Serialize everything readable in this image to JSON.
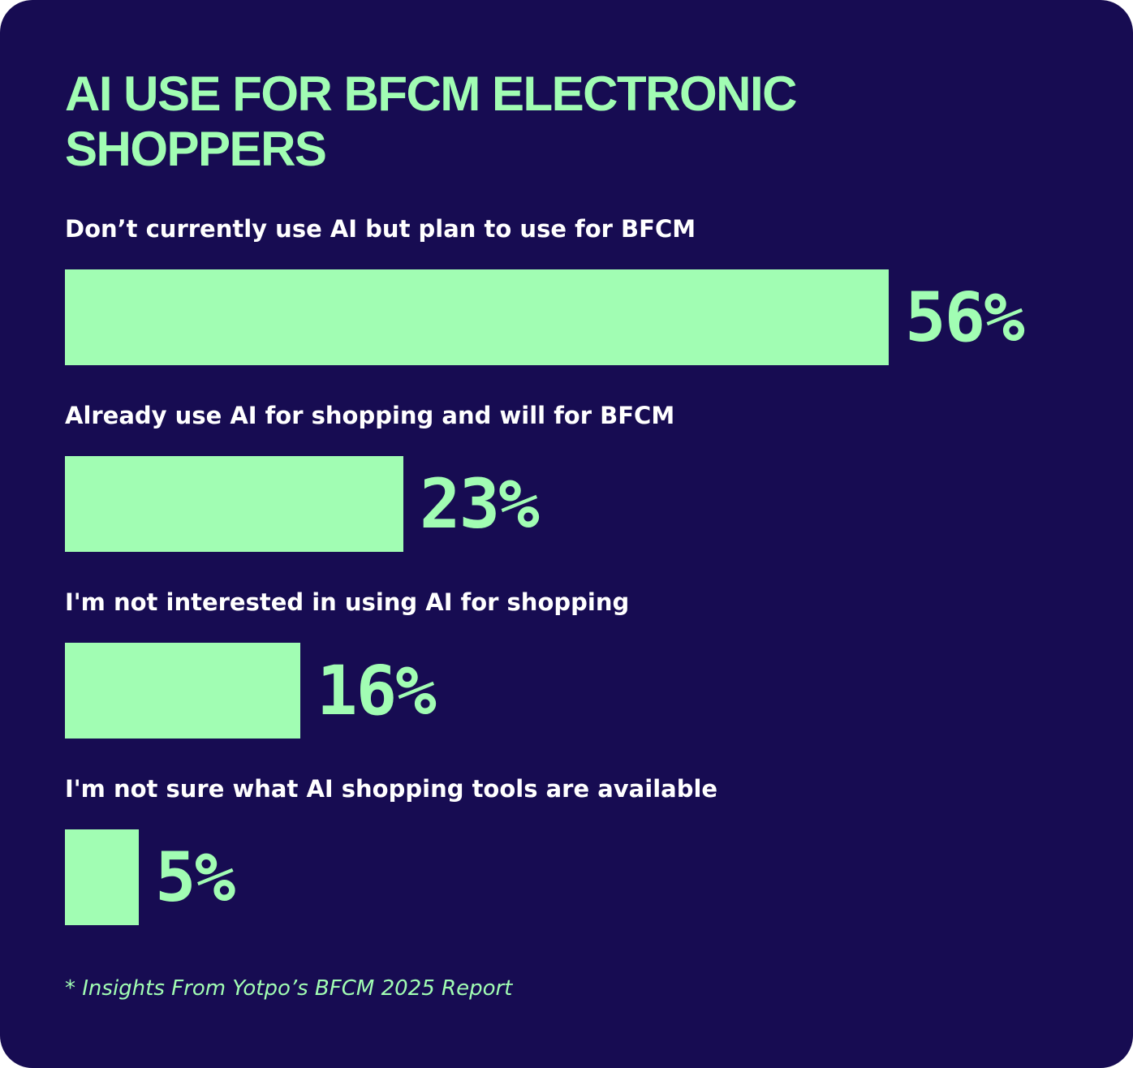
{
  "chart_data": {
    "type": "bar",
    "orientation": "horizontal",
    "title": "AI USE FOR BFCM ELECTRONIC SHOPPERS",
    "categories": [
      "Don’t currently use AI but plan to use for BFCM",
      "Already use AI for shopping and will for BFCM",
      "I'm not interested in using AI for shopping",
      "I'm not sure what AI shopping tools are available"
    ],
    "values": [
      56,
      23,
      16,
      5
    ],
    "value_labels": [
      "56%",
      "23%",
      "16%",
      "5%"
    ],
    "xlim": [
      0,
      56
    ],
    "grid": false,
    "legend": "none"
  },
  "footnote": "* Insights From Yotpo’s BFCM 2025 Report",
  "colors": {
    "background": "#170c52",
    "accent": "#a1fdb3",
    "label_text": "#ffffff"
  }
}
